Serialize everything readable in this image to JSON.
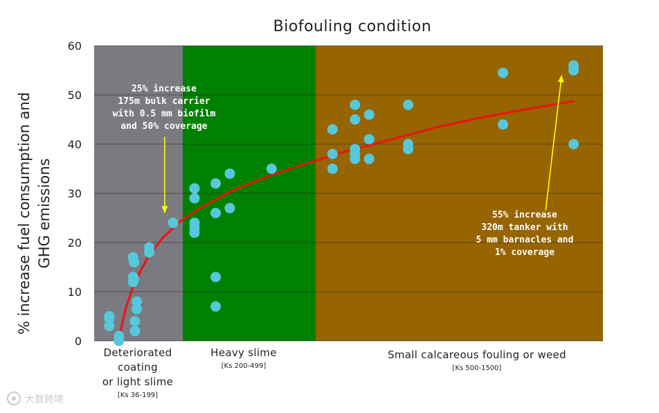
{
  "chart_data": {
    "type": "scatter",
    "title": "Biofouling condition",
    "ylabel_lines": [
      "% increase fuel consumption and",
      "GHG emissions"
    ],
    "ylim": [
      0,
      60
    ],
    "yticks": [
      0,
      10,
      20,
      30,
      40,
      50,
      60
    ],
    "xlim": [
      0,
      1000
    ],
    "grid": true,
    "colors": {
      "band_deteriorated": "#7a7a80",
      "band_heavy_slime": "#008000",
      "band_calcareous": "#966400",
      "point": "#55c8dc",
      "trend": "#ee1111",
      "arrow": "#ffff00"
    },
    "bands": [
      {
        "name": "deteriorated",
        "x_start": 0,
        "x_end": 200,
        "label_lines": [
          "Deteriorated",
          "coating",
          "or light slime"
        ],
        "ks": "[Ks 36-199]",
        "color": "#7a7a80"
      },
      {
        "name": "heavy-slime",
        "x_start": 200,
        "x_end": 500,
        "label_lines": [
          "Heavy slime"
        ],
        "ks": "[Ks 200-499]",
        "color": "#008000"
      },
      {
        "name": "calcareous",
        "x_start": 500,
        "x_end": 1000,
        "label_lines": [
          "Small calcareous fouling or weed"
        ],
        "ks": "[Ks 500-1500]",
        "color": "#966400"
      }
    ],
    "points": [
      {
        "x": 33,
        "y": 5
      },
      {
        "x": 33,
        "y": 4.5
      },
      {
        "x": 33,
        "y": 3
      },
      {
        "x": 54,
        "y": 1
      },
      {
        "x": 54,
        "y": 0.5
      },
      {
        "x": 54,
        "y": 0
      },
      {
        "x": 85,
        "y": 17
      },
      {
        "x": 87,
        "y": 16
      },
      {
        "x": 85,
        "y": 13
      },
      {
        "x": 87,
        "y": 12.5
      },
      {
        "x": 85,
        "y": 12
      },
      {
        "x": 93,
        "y": 8
      },
      {
        "x": 93,
        "y": 6.5
      },
      {
        "x": 89,
        "y": 4
      },
      {
        "x": 89,
        "y": 2
      },
      {
        "x": 120,
        "y": 19
      },
      {
        "x": 120,
        "y": 18
      },
      {
        "x": 172,
        "y": 24
      },
      {
        "x": 219,
        "y": 31
      },
      {
        "x": 219,
        "y": 29
      },
      {
        "x": 219,
        "y": 24
      },
      {
        "x": 219,
        "y": 23
      },
      {
        "x": 219,
        "y": 22
      },
      {
        "x": 265,
        "y": 32
      },
      {
        "x": 265,
        "y": 26
      },
      {
        "x": 265,
        "y": 13
      },
      {
        "x": 265,
        "y": 7
      },
      {
        "x": 296,
        "y": 34
      },
      {
        "x": 296,
        "y": 27
      },
      {
        "x": 387,
        "y": 35
      },
      {
        "x": 520,
        "y": 43
      },
      {
        "x": 520,
        "y": 38
      },
      {
        "x": 520,
        "y": 35
      },
      {
        "x": 569,
        "y": 48
      },
      {
        "x": 569,
        "y": 45
      },
      {
        "x": 569,
        "y": 39
      },
      {
        "x": 569,
        "y": 38
      },
      {
        "x": 569,
        "y": 37
      },
      {
        "x": 600,
        "y": 46
      },
      {
        "x": 600,
        "y": 41
      },
      {
        "x": 600,
        "y": 37
      },
      {
        "x": 685,
        "y": 48
      },
      {
        "x": 685,
        "y": 40
      },
      {
        "x": 685,
        "y": 39
      },
      {
        "x": 892,
        "y": 54.5
      },
      {
        "x": 892,
        "y": 44
      },
      {
        "x": 1046,
        "y": 56
      },
      {
        "x": 1046,
        "y": 55
      },
      {
        "x": 1046,
        "y": 40
      }
    ],
    "trend": [
      {
        "x": 52,
        "y": -0.5
      },
      {
        "x": 60,
        "y": 3
      },
      {
        "x": 70,
        "y": 7
      },
      {
        "x": 85,
        "y": 11
      },
      {
        "x": 100,
        "y": 14
      },
      {
        "x": 120,
        "y": 17.5
      },
      {
        "x": 150,
        "y": 21
      },
      {
        "x": 190,
        "y": 24.5
      },
      {
        "x": 240,
        "y": 27.5
      },
      {
        "x": 300,
        "y": 30.5
      },
      {
        "x": 380,
        "y": 33.5
      },
      {
        "x": 460,
        "y": 36
      },
      {
        "x": 550,
        "y": 38.5
      },
      {
        "x": 650,
        "y": 41
      },
      {
        "x": 750,
        "y": 43.5
      },
      {
        "x": 850,
        "y": 45.5
      },
      {
        "x": 950,
        "y": 47.2
      },
      {
        "x": 1046,
        "y": 48.7
      }
    ],
    "annotations": [
      {
        "name": "annotation-bulk-carrier",
        "lines": [
          "25% increase",
          "175m bulk carrier",
          "with 0.5 mm biofilm",
          "and 50% coverage"
        ],
        "arrow_from": {
          "x": 154,
          "y": 41.5
        },
        "arrow_to": {
          "x": 154,
          "y": 26
        }
      },
      {
        "name": "annotation-tanker",
        "lines": [
          "55% increase",
          "320m tanker with",
          "5 mm barnacles and",
          "1% coverage"
        ],
        "arrow_from": {
          "x": 985,
          "y": 26.5
        },
        "arrow_to": {
          "x": 1020,
          "y": 54
        }
      }
    ]
  },
  "watermark": "大数跨境"
}
